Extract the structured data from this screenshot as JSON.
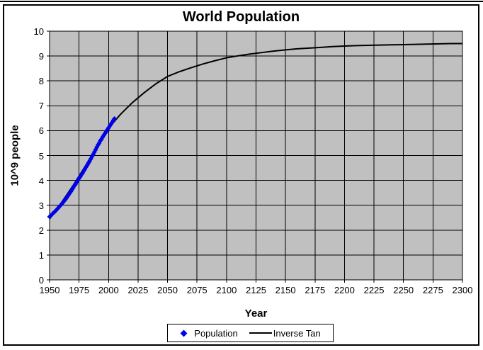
{
  "chart_data": {
    "type": "scatter",
    "title": "World Population",
    "xlabel": "Year",
    "ylabel": "10^9 people",
    "xlim": [
      1950,
      2300
    ],
    "ylim": [
      0,
      10
    ],
    "x_ticks": [
      1950,
      1975,
      2000,
      2025,
      2050,
      2075,
      2100,
      2125,
      2150,
      2175,
      2200,
      2225,
      2250,
      2275,
      2300
    ],
    "y_ticks": [
      0,
      1,
      2,
      3,
      4,
      5,
      6,
      7,
      8,
      9,
      10
    ],
    "grid": true,
    "plot_bg": "#C0C0C0",
    "grid_color": "#000000",
    "legend_position": "bottom",
    "series": [
      {
        "name": "Population",
        "type": "scatter",
        "marker": "diamond",
        "color": "#0000E8",
        "x": [
          1950,
          1951,
          1952,
          1953,
          1954,
          1955,
          1956,
          1957,
          1958,
          1959,
          1960,
          1961,
          1962,
          1963,
          1964,
          1965,
          1966,
          1967,
          1968,
          1969,
          1970,
          1971,
          1972,
          1973,
          1974,
          1975,
          1976,
          1977,
          1978,
          1979,
          1980,
          1981,
          1982,
          1983,
          1984,
          1985,
          1986,
          1987,
          1988,
          1989,
          1990,
          1991,
          1992,
          1993,
          1994,
          1995,
          1996,
          1997,
          1998,
          1999,
          2000,
          2001,
          2002,
          2003,
          2004,
          2005
        ],
        "y": [
          2.54,
          2.58,
          2.63,
          2.68,
          2.72,
          2.77,
          2.82,
          2.87,
          2.93,
          2.98,
          3.03,
          3.09,
          3.15,
          3.21,
          3.27,
          3.34,
          3.41,
          3.48,
          3.55,
          3.63,
          3.7,
          3.78,
          3.85,
          3.93,
          4.0,
          4.08,
          4.15,
          4.23,
          4.3,
          4.38,
          4.46,
          4.54,
          4.62,
          4.7,
          4.78,
          4.87,
          4.96,
          5.05,
          5.14,
          5.23,
          5.33,
          5.42,
          5.5,
          5.59,
          5.66,
          5.74,
          5.82,
          5.89,
          5.96,
          6.04,
          6.11,
          6.19,
          6.26,
          6.33,
          6.41,
          6.48
        ]
      },
      {
        "name": "Inverse Tan",
        "type": "line",
        "color": "#000000",
        "x": [
          1950,
          1960,
          1970,
          1980,
          1990,
          2000,
          2010,
          2020,
          2030,
          2040,
          2050,
          2060,
          2070,
          2080,
          2090,
          2100,
          2110,
          2120,
          2130,
          2140,
          2150,
          2160,
          2170,
          2180,
          2190,
          2200,
          2210,
          2220,
          2230,
          2240,
          2250,
          2260,
          2270,
          2280,
          2290,
          2300
        ],
        "y": [
          2.45,
          3.1,
          3.8,
          4.55,
          5.33,
          6.1,
          6.65,
          7.12,
          7.52,
          7.88,
          8.18,
          8.37,
          8.53,
          8.68,
          8.81,
          8.93,
          9.01,
          9.08,
          9.14,
          9.2,
          9.25,
          9.29,
          9.32,
          9.35,
          9.38,
          9.4,
          9.42,
          9.43,
          9.44,
          9.45,
          9.46,
          9.47,
          9.48,
          9.49,
          9.5,
          9.5
        ]
      }
    ]
  }
}
